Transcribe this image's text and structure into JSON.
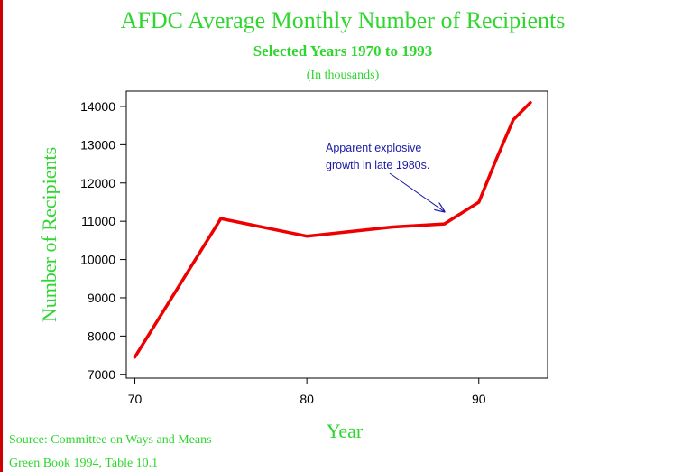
{
  "chart_data": {
    "type": "line",
    "title": "AFDC Average Monthly Number of Recipients",
    "subtitle": "Selected Years 1970 to 1993",
    "unit_note": "(In thousands)",
    "xlabel": "Year",
    "ylabel": "Number of Recipients",
    "xlim": [
      69.5,
      94
    ],
    "ylim": [
      6900,
      14400
    ],
    "x_ticks": [
      70,
      80,
      90
    ],
    "y_ticks": [
      7000,
      8000,
      9000,
      10000,
      11000,
      12000,
      13000,
      14000
    ],
    "series": [
      {
        "color": "#ee0000",
        "x": [
          70,
          75,
          80,
          85,
          88,
          90,
          91,
          92,
          93
        ],
        "y": [
          7450,
          11070,
          10610,
          10850,
          10930,
          11500,
          12600,
          13650,
          14100
        ]
      }
    ],
    "annotation": {
      "lines": [
        "Apparent explosive",
        "growth in late 1980s."
      ],
      "points_to": {
        "x": 88,
        "y": 11250
      },
      "color": "#1a1aa6"
    },
    "grid": false
  },
  "source": {
    "line1": "Source: Committee on Ways and Means",
    "line2": "Green Book 1994, Table 10.1"
  }
}
